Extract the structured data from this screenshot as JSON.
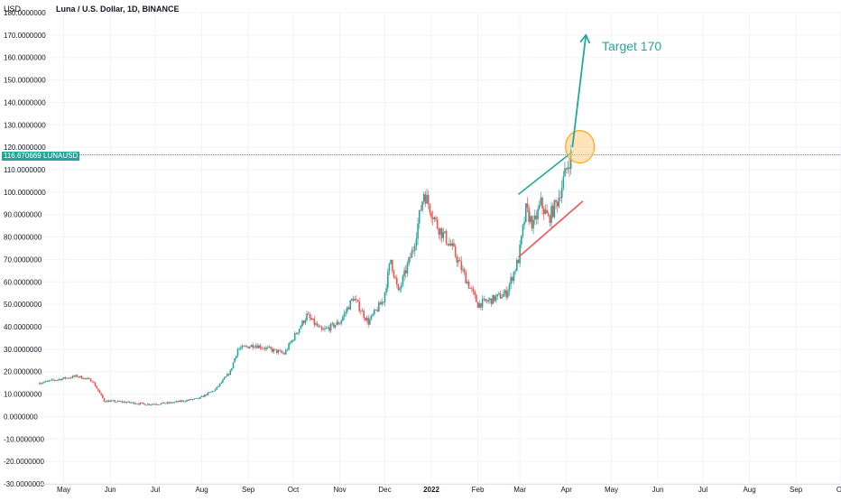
{
  "header": {
    "currency": "USD",
    "title": "Luna / U.S. Dollar, 1D, BINANCE"
  },
  "last_price": {
    "value": "116.6706697",
    "symbol": "LUNAUSD"
  },
  "annotations": {
    "target_label": "Target 170"
  },
  "colors": {
    "up": "#26a69a",
    "down": "#ef5350",
    "grid": "#f0f3fa",
    "axis_text": "#131722",
    "price_line": "#26a69a",
    "circle_fill": "#ffcc80",
    "circle_stroke": "#ff9800",
    "resistance_line": "#26a69a",
    "support_line": "#ef5350",
    "arrow": "#26a69a"
  },
  "chart_data": {
    "type": "candlestick",
    "title": "Luna / U.S. Dollar, 1D, BINANCE",
    "ylabel": "USD",
    "ylim": [
      -30,
      180
    ],
    "y_ticks": [
      "180.0000000",
      "170.0000000",
      "160.0000000",
      "150.0000000",
      "140.0000000",
      "130.0000000",
      "120.0000000",
      "110.0000000",
      "100.0000000",
      "90.0000000",
      "80.0000000",
      "70.0000000",
      "60.0000000",
      "50.0000000",
      "40.0000000",
      "30.0000000",
      "20.0000000",
      "10.0000000",
      "0.0000000",
      "-10.0000000",
      "-20.0000000",
      "-30.0000000"
    ],
    "y_tick_values": [
      180,
      170,
      160,
      150,
      140,
      130,
      120,
      110,
      100,
      90,
      80,
      70,
      60,
      50,
      40,
      30,
      20,
      10,
      0,
      -10,
      -20,
      -30
    ],
    "x_ticks": [
      "May",
      "Jun",
      "Jul",
      "Aug",
      "Sep",
      "Oct",
      "Nov",
      "Dec",
      "2022",
      "Feb",
      "Mar",
      "Apr",
      "May",
      "Jun",
      "Jul",
      "Aug",
      "Sep",
      "Oc"
    ],
    "x_tick_dates": [
      "2021-05-01",
      "2021-06-01",
      "2021-07-01",
      "2021-08-01",
      "2021-09-01",
      "2021-10-01",
      "2021-11-01",
      "2021-12-01",
      "2022-01-01",
      "2022-02-01",
      "2022-03-01",
      "2022-04-01",
      "2022-05-01",
      "2022-06-01",
      "2022-07-01",
      "2022-08-01",
      "2022-09-01",
      "2022-10-01"
    ],
    "xlim": [
      "2021-04-15",
      "2022-10-01"
    ],
    "price_path": [
      [
        "2021-04-15",
        15
      ],
      [
        "2021-05-01",
        17
      ],
      [
        "2021-05-10",
        18
      ],
      [
        "2021-05-20",
        16
      ],
      [
        "2021-05-28",
        7
      ],
      [
        "2021-06-10",
        6.5
      ],
      [
        "2021-06-25",
        5.5
      ],
      [
        "2021-07-10",
        6
      ],
      [
        "2021-07-20",
        7
      ],
      [
        "2021-07-30",
        8
      ],
      [
        "2021-08-10",
        12
      ],
      [
        "2021-08-20",
        20
      ],
      [
        "2021-08-25",
        30
      ],
      [
        "2021-09-05",
        32
      ],
      [
        "2021-09-15",
        30
      ],
      [
        "2021-09-25",
        28
      ],
      [
        "2021-10-01",
        35
      ],
      [
        "2021-10-10",
        45
      ],
      [
        "2021-10-20",
        38
      ],
      [
        "2021-11-01",
        42
      ],
      [
        "2021-11-10",
        53
      ],
      [
        "2021-11-20",
        42
      ],
      [
        "2021-11-30",
        52
      ],
      [
        "2021-12-05",
        70
      ],
      [
        "2021-12-10",
        55
      ],
      [
        "2021-12-20",
        75
      ],
      [
        "2021-12-27",
        100
      ],
      [
        "2022-01-05",
        85
      ],
      [
        "2022-01-15",
        75
      ],
      [
        "2022-01-25",
        60
      ],
      [
        "2022-02-01",
        50
      ],
      [
        "2022-02-10",
        52
      ],
      [
        "2022-02-20",
        55
      ],
      [
        "2022-02-28",
        70
      ],
      [
        "2022-03-05",
        92
      ],
      [
        "2022-03-10",
        85
      ],
      [
        "2022-03-15",
        95
      ],
      [
        "2022-03-20",
        88
      ],
      [
        "2022-03-26",
        96
      ],
      [
        "2022-04-01",
        110
      ],
      [
        "2022-04-04",
        116.67
      ]
    ],
    "resistance_line": [
      [
        "2022-02-28",
        99
      ],
      [
        "2022-04-05",
        118
      ]
    ],
    "support_line": [
      [
        "2022-02-28",
        71
      ],
      [
        "2022-04-12",
        96
      ]
    ],
    "target_arrow": [
      [
        "2022-04-05",
        120
      ],
      [
        "2022-04-14",
        170
      ]
    ],
    "highlight_circle": {
      "date": "2022-04-04",
      "value": 117
    }
  }
}
